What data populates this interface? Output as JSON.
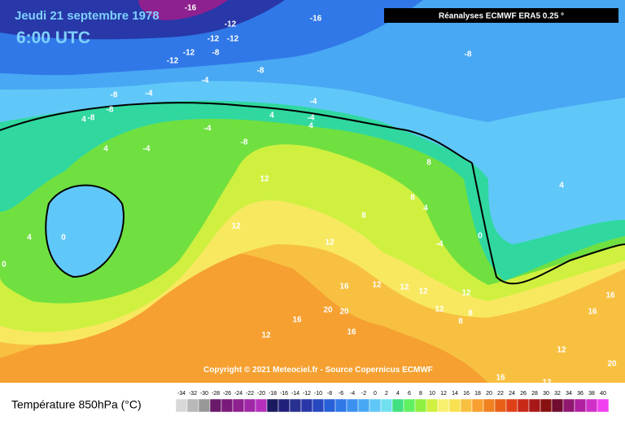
{
  "header": {
    "title": "Jeudi 21 septembre 1978",
    "time": "6:00 UTC",
    "source": "Réanalyses ECMWF ERA5 0.25 °"
  },
  "copyright": "Copyright © 2021 Meteociel.fr - Source Copernicus ECMWF",
  "legend": {
    "label": "Température 850hPa (°C)",
    "ticks": [
      -34,
      -32,
      -30,
      -28,
      -26,
      -24,
      -22,
      -20,
      -18,
      -16,
      -14,
      -12,
      -10,
      -8,
      -6,
      -4,
      -2,
      0,
      2,
      4,
      6,
      8,
      10,
      12,
      14,
      16,
      18,
      20,
      22,
      24,
      26,
      28,
      30,
      32,
      34,
      36,
      38,
      40
    ],
    "colors": [
      "#d8d8d8",
      "#b8b8b8",
      "#989898",
      "#6a1a6a",
      "#7a1a7a",
      "#8e2090",
      "#a028a8",
      "#b430bc",
      "#1a1a60",
      "#20207a",
      "#283090",
      "#2838a8",
      "#2848c0",
      "#2860d8",
      "#3078e8",
      "#3c90f0",
      "#48a8f4",
      "#60c8f8",
      "#70e0f0",
      "#40e080",
      "#60f060",
      "#90f040",
      "#d0f040",
      "#f8f070",
      "#f8e050",
      "#f8c040",
      "#f8a030",
      "#f08020",
      "#e86018",
      "#e04018",
      "#c82818",
      "#a81818",
      "#881010",
      "#700c30",
      "#901870",
      "#b020a0",
      "#d030c8",
      "#f040f0"
    ]
  },
  "contour_labels": [
    "-16",
    "-16",
    "-12",
    "-12",
    "-12",
    "-12",
    "-8",
    "-12",
    "-8",
    "-4",
    "-8",
    "-8",
    "-4",
    "-8",
    "-4",
    "-8",
    "4",
    "4",
    "-4",
    "-4",
    "4",
    "4",
    "-4",
    "0",
    "4",
    "-8",
    "12",
    "12",
    "0",
    "8",
    "12",
    "8",
    "4",
    "8",
    "4",
    "0",
    "-4",
    "12",
    "12",
    "12",
    "16",
    "16",
    "20",
    "20",
    "16",
    "12",
    "12",
    "12",
    "16",
    "16",
    "20",
    "12",
    "16",
    "12",
    "8",
    "8"
  ]
}
